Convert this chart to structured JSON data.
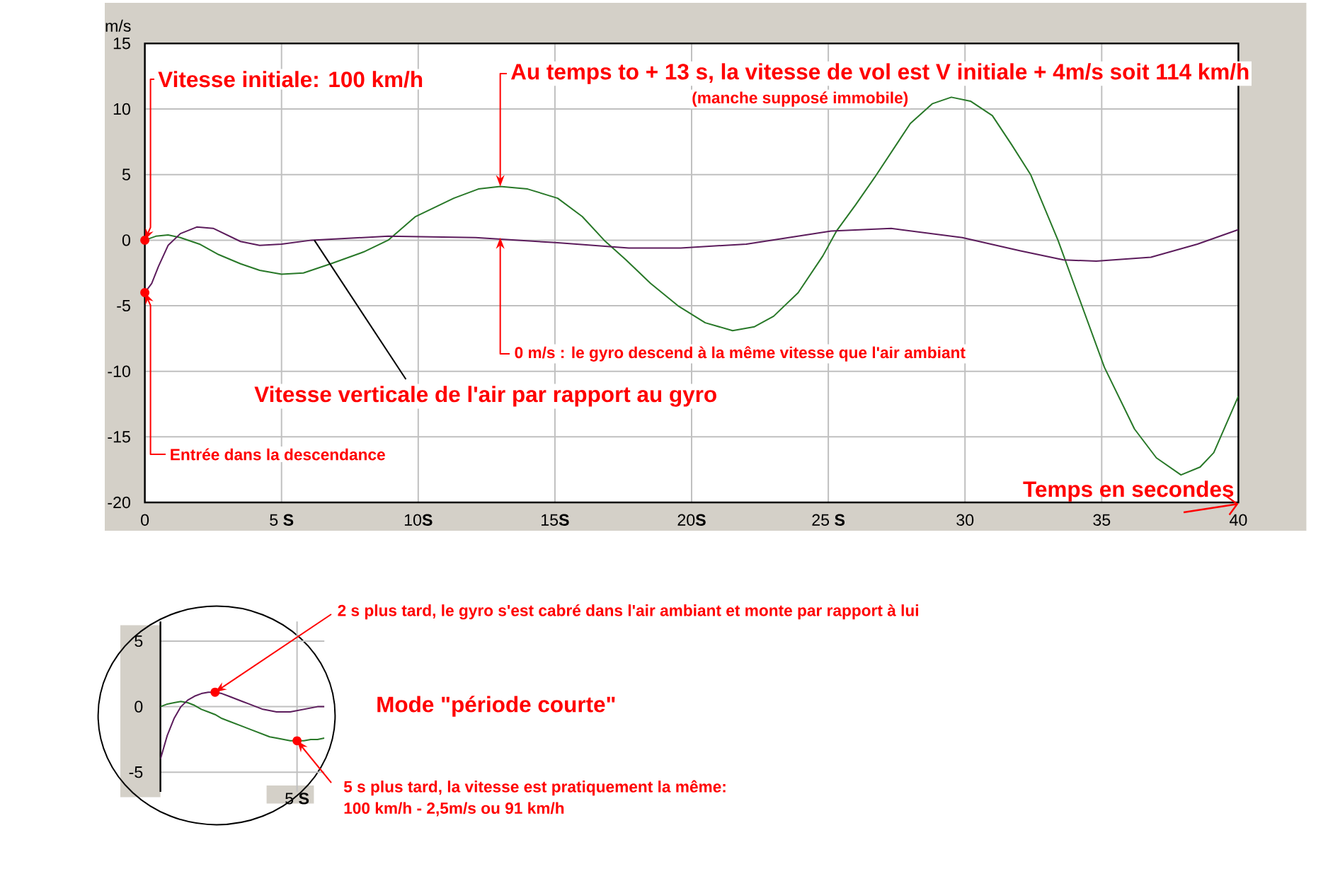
{
  "chart_data": [
    {
      "type": "line",
      "xlabel": "Temps en secondes",
      "ylabel": "m/s",
      "xlim": [
        0,
        40
      ],
      "ylim": [
        -20,
        15
      ],
      "xticks": [
        0,
        {
          "value": 5,
          "label": "5 **S**"
        },
        {
          "value": 10,
          "label": "10**S**"
        },
        {
          "value": 15,
          "label": "15**S**"
        },
        {
          "value": 20,
          "label": "20**S**"
        },
        {
          "value": 25,
          "label": "25 **S**"
        },
        30,
        35,
        40
      ],
      "yticks": [
        -20,
        -15,
        -10,
        -5,
        0,
        5,
        10,
        15
      ],
      "grid": true,
      "series": [
        {
          "color": "#287828",
          "x": [
            0,
            0.4,
            0.85,
            1.3,
            2.0,
            2.7,
            3.5,
            4.2,
            5.0,
            5.8,
            6.8,
            8.0,
            8.9,
            9.9,
            11.3,
            12.2,
            13.0,
            14.0,
            15.1,
            16.0,
            16.8,
            17.6,
            18.5,
            19.5,
            20.5,
            21.5,
            22.3,
            23.0,
            23.9,
            24.8,
            25.3,
            26.0,
            26.7,
            28.0,
            28.8,
            29.5,
            30.2,
            31.0,
            31.7,
            32.4,
            33.4,
            34.1,
            35.1,
            36.2,
            37.0,
            37.9,
            38.6,
            39.1,
            40.0
          ],
          "values": [
            0,
            0.3,
            0.4,
            0.2,
            -0.3,
            -1.1,
            -1.8,
            -2.3,
            -2.6,
            -2.5,
            -1.8,
            -0.9,
            0,
            1.8,
            3.2,
            3.9,
            4.1,
            3.9,
            3.2,
            1.8,
            0,
            -1.5,
            -3.3,
            -5.0,
            -6.3,
            -6.9,
            -6.6,
            -5.8,
            -4.0,
            -1.2,
            0.7,
            2.7,
            4.8,
            8.9,
            10.4,
            10.9,
            10.6,
            9.5,
            7.3,
            5.0,
            0,
            -4.0,
            -9.7,
            -14.4,
            -16.6,
            -17.9,
            -17.3,
            -16.2,
            -11.9
          ]
        },
        {
          "color": "#5c1c5c",
          "x": [
            0,
            0.25,
            0.5,
            0.85,
            1.3,
            1.9,
            2.5,
            3.5,
            4.2,
            5.0,
            6.1,
            8.9,
            12.1,
            15.1,
            17.7,
            19.6,
            22.0,
            25.1,
            27.3,
            29.9,
            32.0,
            33.6,
            34.8,
            36.8,
            38.5,
            40.0
          ],
          "values": [
            -4.0,
            -3.3,
            -2.0,
            -0.4,
            0.5,
            1.0,
            0.9,
            -0.1,
            -0.4,
            -0.3,
            0.0,
            0.3,
            0.2,
            -0.2,
            -0.6,
            -0.6,
            -0.3,
            0.7,
            0.9,
            0.2,
            -0.8,
            -1.5,
            -1.6,
            -1.3,
            -0.3,
            0.8
          ]
        }
      ],
      "annotations": [
        {
          "text": "Vitesse initiale: 100 km/h",
          "x": 0,
          "y": 0
        },
        {
          "text": "Au temps to + 13 s, la vitesse de vol est V initiale + 4m/s soit 114 km/h",
          "x": 13,
          "y": 4.1
        },
        "(manche supposé immobile)",
        {
          "text": "0 m/s : le gyro descend à la même vitesse que l'air ambiant",
          "x": 13,
          "y": 0.2
        },
        {
          "text": "Vitesse verticale de l'air par rapport au gyro",
          "x": 6.2,
          "y": 0
        },
        {
          "text": "Entrée dans la descendance",
          "x": 0,
          "y": -4
        }
      ]
    },
    {
      "type": "line",
      "categories": [
        null,
        null,
        null,
        null,
        null,
        null,
        null,
        null,
        null,
        null,
        null,
        null,
        null,
        null,
        null,
        null,
        null,
        null,
        null,
        null,
        "5 **S**",
        null,
        null,
        null,
        null
      ],
      "ylim": [
        -6.5,
        6.5
      ],
      "yticks": [
        -5,
        0,
        5
      ],
      "grid": true,
      "series": [
        {
          "color": "#287828",
          "values": [
            0,
            0.2,
            0.3,
            0.4,
            0.3,
            0.1,
            -0.2,
            -0.4,
            -0.6,
            -0.9,
            -1.1,
            -1.3,
            -1.5,
            -1.7,
            -1.9,
            -2.1,
            -2.3,
            -2.4,
            -2.5,
            -2.6,
            -2.6,
            -2.6,
            -2.5,
            -2.5,
            -2.4
          ]
        },
        {
          "color": "#5c1c5c",
          "values": [
            -4.0,
            -2.2,
            -0.9,
            0.0,
            0.5,
            0.8,
            1.0,
            1.1,
            1.1,
            1.0,
            0.8,
            0.6,
            0.4,
            0.2,
            0.0,
            -0.2,
            -0.3,
            -0.4,
            -0.4,
            -0.4,
            -0.3,
            -0.2,
            -0.1,
            0.0,
            0.0
          ]
        }
      ],
      "annotations": [
        "2 s plus tard, le gyro s'est cabré dans l'air ambiant et monte par rapport à lui",
        "Mode \"période courte\"",
        {
          "text": "5 s plus tard, la vitesse est pratiquement la même:",
          "x": "5 **S**",
          "y": -2.6
        },
        "100 km/h - 2,5m/s ou 91 km/h"
      ]
    }
  ]
}
